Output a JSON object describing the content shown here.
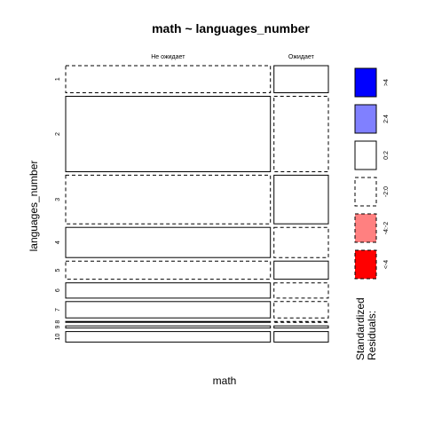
{
  "chart_data": {
    "type": "mosaic",
    "title": "math ~ languages_number",
    "xlabel": "math",
    "ylabel": "languages_number",
    "columns": [
      "Не ожидает",
      "Ожидает"
    ],
    "column_proportions": [
      0.79,
      0.21
    ],
    "rows": [
      {
        "label": "1",
        "proportion": 0.103,
        "cells": [
          {
            "residual_band": "-2:0",
            "share": 0.87
          },
          {
            "residual_band": "0:2",
            "share": 0.13
          }
        ]
      },
      {
        "label": "2",
        "proportion": 0.287,
        "cells": [
          {
            "residual_band": "0:2",
            "share": 0.82
          },
          {
            "residual_band": "-2:0",
            "share": 0.18
          }
        ]
      },
      {
        "label": "3",
        "proportion": 0.185,
        "cells": [
          {
            "residual_band": "-2:0",
            "share": 0.74
          },
          {
            "residual_band": "0:2",
            "share": 0.26
          }
        ]
      },
      {
        "label": "4",
        "proportion": 0.115,
        "cells": [
          {
            "residual_band": "0:2",
            "share": 0.83
          },
          {
            "residual_band": "-2:0",
            "share": 0.17
          }
        ]
      },
      {
        "label": "5",
        "proportion": 0.069,
        "cells": [
          {
            "residual_band": "-2:0",
            "share": 0.7
          },
          {
            "residual_band": "0:2",
            "share": 0.3
          }
        ]
      },
      {
        "label": "6",
        "proportion": 0.058,
        "cells": [
          {
            "residual_band": "0:2",
            "share": 0.88
          },
          {
            "residual_band": "-2:0",
            "share": 0.12
          }
        ]
      },
      {
        "label": "7",
        "proportion": 0.062,
        "cells": [
          {
            "residual_band": "0:2",
            "share": 0.84
          },
          {
            "residual_band": "-2:0",
            "share": 0.16
          }
        ]
      },
      {
        "label": "8",
        "proportion": 0.0,
        "cells": [
          {
            "residual_band": "0:2",
            "share": 1.0
          },
          {
            "residual_band": "-2:0",
            "share": 0.0
          }
        ]
      },
      {
        "label": "9",
        "proportion": 0.008,
        "cells": [
          {
            "residual_band": "0:2",
            "share": 1.0
          },
          {
            "residual_band": "0:2",
            "share": 0.0
          }
        ]
      },
      {
        "label": "10",
        "proportion": 0.04,
        "cells": [
          {
            "residual_band": "0:2",
            "share": 0.82
          },
          {
            "residual_band": "0:2",
            "share": 0.18
          }
        ]
      }
    ],
    "legend": {
      "title_lines": [
        "Standardized",
        "Residuals:"
      ],
      "placement": "right",
      "bands": [
        {
          "label": ">4",
          "fill": "#0000ff",
          "dashed": false
        },
        {
          "label": "2:4",
          "fill": "#8080ff",
          "dashed": false
        },
        {
          "label": "0:2",
          "fill": "#ffffff",
          "dashed": false
        },
        {
          "label": "-2:0",
          "fill": "#ffffff",
          "dashed": true
        },
        {
          "label": "-4:-2",
          "fill": "#ff8080",
          "dashed": true
        },
        {
          "label": "<-4",
          "fill": "#ff0000",
          "dashed": true
        }
      ]
    }
  }
}
